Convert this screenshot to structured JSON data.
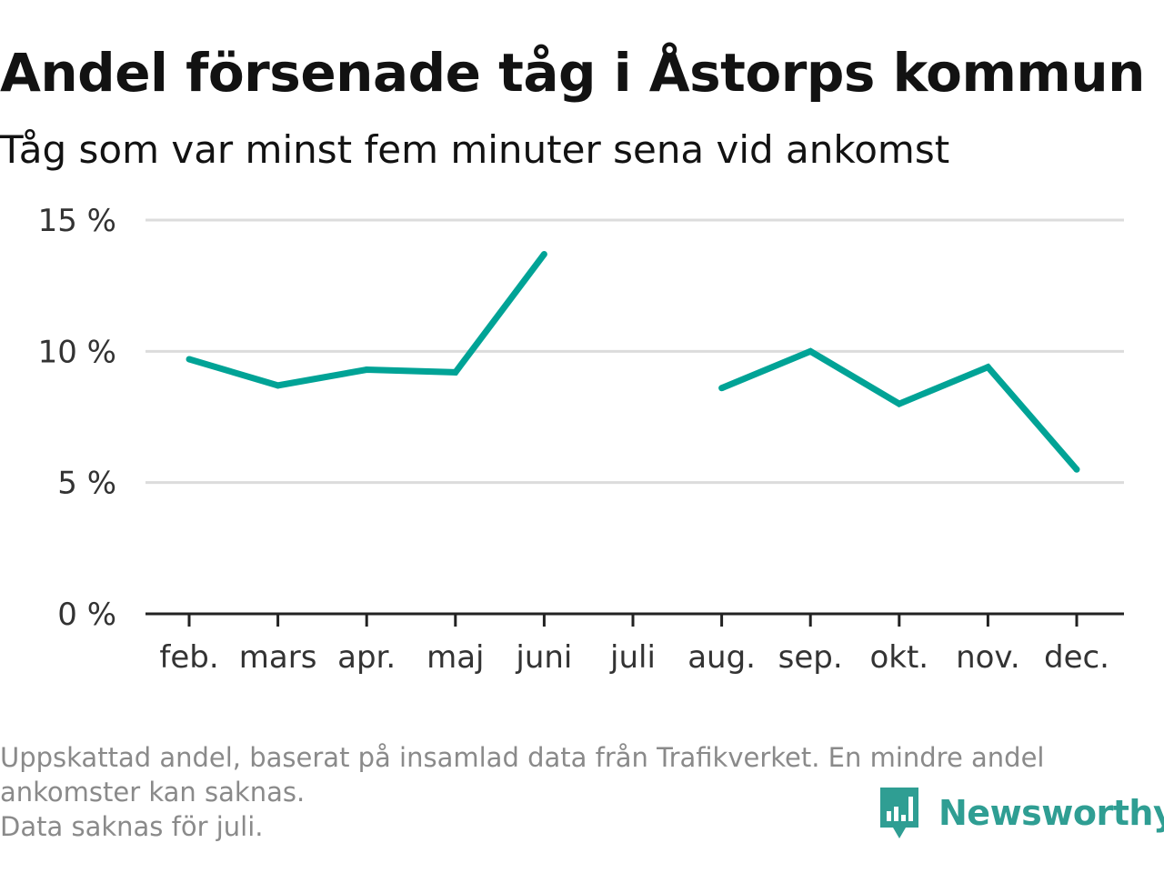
{
  "title": "Andel försenade tåg i Åstorps kommun",
  "subtitle": "Tåg som var minst fem minuter sena vid ankomst",
  "footnote": {
    "line1": "Uppskattad andel, baserat på insamlad data från Trafikverket. En mindre andel",
    "line2": "ankomster kan saknas.",
    "line3": "Data saknas för juli."
  },
  "brand": {
    "name": "Newsworthy",
    "icon": "newsworthy-logo-icon",
    "color": "#2f9e93"
  },
  "chart_data": {
    "type": "line",
    "title": "Andel försenade tåg i Åstorps kommun",
    "subtitle": "Tåg som var minst fem minuter sena vid ankomst",
    "categories": [
      "feb.",
      "mars",
      "apr.",
      "maj",
      "juni",
      "juli",
      "aug.",
      "sep.",
      "okt.",
      "nov.",
      "dec."
    ],
    "series": [
      {
        "values": [
          9.7,
          8.7,
          9.3,
          9.2,
          13.7,
          null,
          8.6,
          10.0,
          8.0,
          9.4,
          5.5
        ],
        "color": "#00a396"
      }
    ],
    "ylim": [
      0,
      15
    ],
    "yticks": [
      0,
      5,
      10,
      15
    ],
    "ytick_labels": [
      "0 %",
      "5 %",
      "10 %",
      "15 %"
    ],
    "grid": true,
    "legend": "none"
  }
}
